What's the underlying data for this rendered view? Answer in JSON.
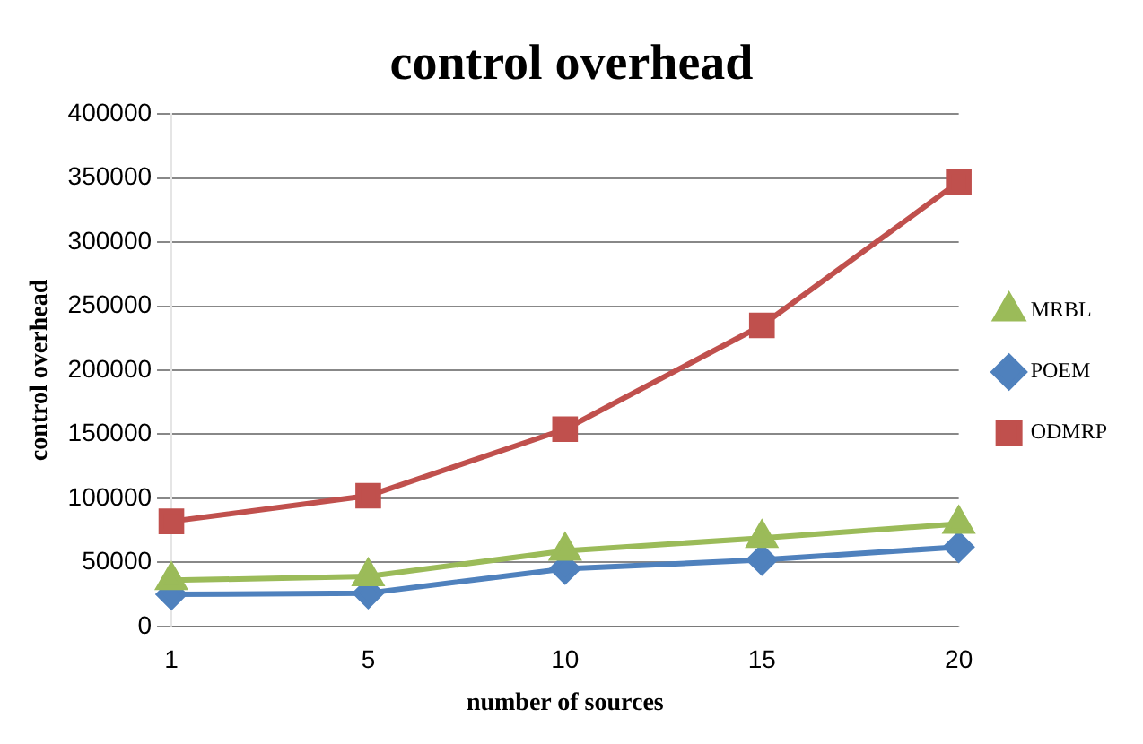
{
  "chart_data": {
    "type": "line",
    "title": "control overhead",
    "xlabel": "number of sources",
    "ylabel": "control overhead",
    "categories": [
      "1",
      "5",
      "10",
      "15",
      "20"
    ],
    "series": [
      {
        "name": "MRBL",
        "color": "#9bbb59",
        "marker": "triangle",
        "values": [
          36000,
          39000,
          59000,
          69000,
          80000
        ]
      },
      {
        "name": "POEM",
        "color": "#4f81bd",
        "marker": "diamond",
        "values": [
          25000,
          26000,
          45000,
          52000,
          62000
        ]
      },
      {
        "name": "ODMRP",
        "color": "#c0504d",
        "marker": "square",
        "values": [
          82000,
          102000,
          154000,
          235000,
          347000
        ]
      }
    ],
    "ylim": [
      0,
      400000
    ],
    "yticks": [
      0,
      50000,
      100000,
      150000,
      200000,
      250000,
      300000,
      350000,
      400000
    ],
    "grid": "y",
    "legend": "right"
  }
}
